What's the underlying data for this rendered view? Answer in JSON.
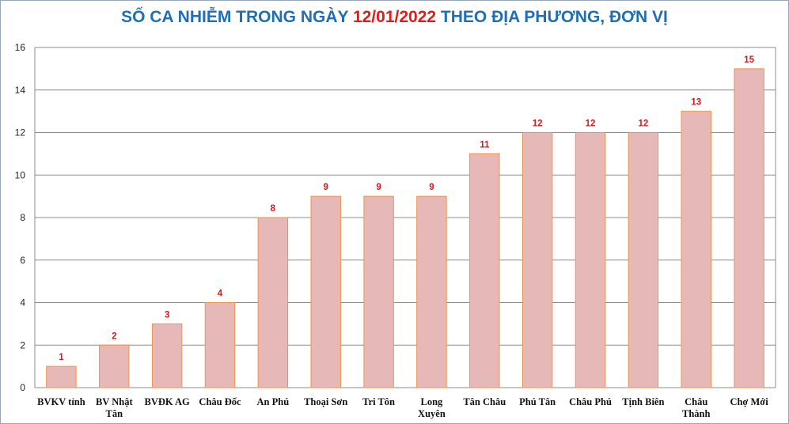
{
  "title": {
    "prefix": "SỐ CA NHIỄM TRONG NGÀY ",
    "date": "12/01/2022",
    "suffix": " THEO ĐỊA PHƯƠNG, ĐƠN VỊ"
  },
  "colors": {
    "bar_fill": "#e6b8b7",
    "bar_stroke": "#f0944a",
    "title": "#1f6fb4",
    "title_date": "#e01b1b",
    "data_label": "#d9161c",
    "grid": "#8c8c8c"
  },
  "chart_data": {
    "type": "bar",
    "title": "SỐ CA NHIỄM TRONG NGÀY 12/01/2022 THEO ĐỊA PHƯƠNG, ĐƠN VỊ",
    "categories": [
      [
        "BVKV tỉnh"
      ],
      [
        "BV Nhật",
        "Tân"
      ],
      [
        "BVĐK AG"
      ],
      [
        "Châu Đốc"
      ],
      [
        "An Phú"
      ],
      [
        "Thoại Sơn"
      ],
      [
        "Tri Tôn"
      ],
      [
        "Long",
        "Xuyên"
      ],
      [
        "Tân Châu"
      ],
      [
        "Phú Tân"
      ],
      [
        "Châu Phú"
      ],
      [
        "Tịnh Biên"
      ],
      [
        "Châu",
        "Thành"
      ],
      [
        "Chợ Mới"
      ]
    ],
    "values": [
      1,
      2,
      3,
      4,
      8,
      9,
      9,
      9,
      11,
      12,
      12,
      12,
      13,
      15
    ],
    "ylim": [
      0,
      16
    ],
    "yticks": [
      0,
      2,
      4,
      6,
      8,
      10,
      12,
      14,
      16
    ],
    "grid": true,
    "data_labels": true,
    "xlabel": "",
    "ylabel": ""
  }
}
